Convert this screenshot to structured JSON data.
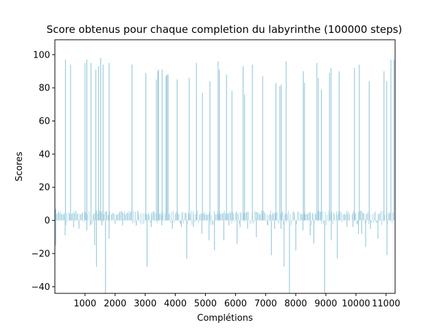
{
  "chart_data": {
    "type": "bar",
    "title": "Score obtenus pour chaque completion du labyrinthe (100000 steps)",
    "xlabel": "Complétions",
    "ylabel": "Scores",
    "xlim": [
      0,
      11300
    ],
    "ylim": [
      -44,
      109
    ],
    "xticks": [
      1000,
      2000,
      3000,
      4000,
      5000,
      6000,
      7000,
      8000,
      9000,
      10000,
      11000
    ],
    "yticks": [
      -40,
      -20,
      0,
      20,
      40,
      60,
      80,
      100
    ],
    "bar_color": "#92c6d9",
    "grid": false,
    "legend": "none",
    "baseline_band": [
      -3,
      6
    ],
    "x": [
      30,
      350,
      520,
      1000,
      1060,
      1200,
      1360,
      1450,
      1520,
      1600,
      1800,
      2560,
      3020,
      3370,
      3420,
      3440,
      3560,
      3690,
      3720,
      3760,
      4060,
      4460,
      4700,
      4900,
      5150,
      5420,
      5460,
      5700,
      5880,
      6250,
      6300,
      6560,
      6900,
      7340,
      7470,
      7520,
      7680,
      8250,
      8290,
      8700,
      8750,
      8850,
      9120,
      9170,
      9440,
      9950,
      10110,
      10440,
      10930,
      11020,
      11160,
      11260,
      30,
      340,
      620,
      800,
      1060,
      1320,
      1380,
      1560,
      1680,
      1800,
      2000,
      2250,
      2700,
      3060,
      3200,
      3550,
      3900,
      4200,
      4380,
      4600,
      4880,
      5120,
      5300,
      5610,
      5780,
      6050,
      6150,
      6400,
      6690,
      7060,
      7190,
      7300,
      7510,
      7610,
      7790,
      8000,
      8240,
      8480,
      8600,
      8960,
      9180,
      9380,
      9700,
      9900,
      10080,
      10190,
      10320,
      10480,
      10730,
      11030
    ],
    "values": [
      7,
      97,
      94,
      95,
      97,
      95,
      91,
      93,
      98,
      94,
      95,
      94,
      89,
      85,
      90,
      91,
      91,
      87,
      88,
      88,
      85,
      86,
      95,
      77,
      84,
      96,
      91,
      88,
      78,
      93,
      76,
      94,
      87,
      83,
      81,
      82,
      96,
      90,
      83,
      95,
      86,
      79,
      89,
      92,
      90,
      92,
      94,
      84,
      90,
      84,
      97,
      97,
      -15,
      -9,
      -4,
      -5,
      -6,
      -15,
      -28,
      -3,
      -44,
      -11,
      -2,
      -3,
      -3,
      -28,
      -4,
      -3,
      -5,
      -4,
      -23,
      -4,
      -8,
      -12,
      -18,
      -12,
      -3,
      -14,
      -4,
      -5,
      -10,
      -3,
      -21,
      -5,
      -5,
      -28,
      -44,
      -18,
      -6,
      -9,
      -14,
      -44,
      -12,
      -23,
      -4,
      -4,
      -8,
      -8,
      -16,
      -5,
      -11,
      -21
    ]
  }
}
